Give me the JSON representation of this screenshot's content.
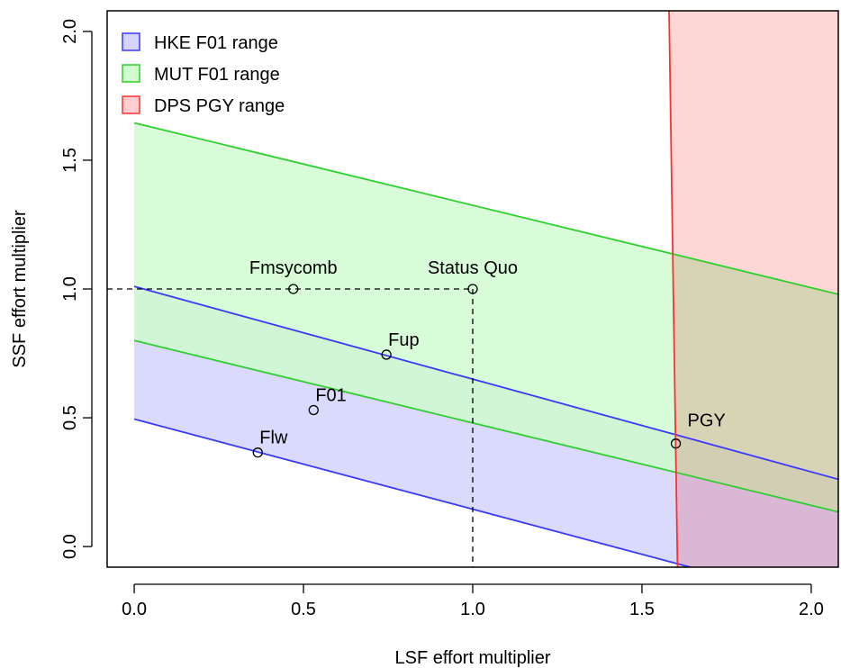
{
  "chart_data": {
    "type": "area",
    "xlabel": "LSF effort multiplier",
    "ylabel": "SSF effort multiplier",
    "xlim": [
      -0.08,
      2.08
    ],
    "ylim": [
      -0.08,
      2.08
    ],
    "x_ticks": [
      "0.0",
      "0.5",
      "1.0",
      "1.5",
      "2.0"
    ],
    "y_ticks": [
      "0.0",
      "0.5",
      "1.0",
      "1.5",
      "2.0"
    ],
    "grid": false,
    "legend_position": "top-left",
    "legend": [
      {
        "label": "HKE F01 range",
        "fill": "#d4d4fc",
        "border": "#3a3aff"
      },
      {
        "label": "MUT F01 range",
        "fill": "#d0fcd0",
        "border": "#2ecf2e"
      },
      {
        "label": "DPS PGY range",
        "fill": "#ffcfcf",
        "border": "#ff3030"
      }
    ],
    "bands": [
      {
        "name": "HKE F01 range",
        "fill": "#d4d4fc",
        "stroke": "#3a3aff",
        "lower": {
          "intercept": 0.495,
          "slope": -0.35
        },
        "upper": {
          "intercept": 1.01,
          "slope": -0.36
        }
      },
      {
        "name": "MUT F01 range",
        "fill": "#d0fcd0",
        "stroke": "#2ecf2e",
        "lower": {
          "intercept": 0.8,
          "slope": -0.32
        },
        "upper": {
          "intercept": 1.645,
          "slope": -0.32
        }
      }
    ],
    "pgy_region": {
      "name": "DPS PGY range",
      "fill": "#ffcfcf",
      "stroke": "#ff3030",
      "boundary": [
        [
          1.58,
          2.08
        ],
        [
          1.605,
          -0.08
        ]
      ]
    },
    "reference_lines": {
      "x": 1.0,
      "y": 1.0
    },
    "points": [
      {
        "label": "Fmsycomb",
        "x": 0.47,
        "y": 1.0,
        "label_pos": "above"
      },
      {
        "label": "Status Quo",
        "x": 1.0,
        "y": 1.0,
        "label_pos": "above"
      },
      {
        "label": "Fup",
        "x": 0.745,
        "y": 0.745,
        "label_pos": "above-right"
      },
      {
        "label": "F01",
        "x": 0.53,
        "y": 0.53,
        "label_pos": "above-right"
      },
      {
        "label": "Flw",
        "x": 0.365,
        "y": 0.365,
        "label_pos": "above-right"
      },
      {
        "label": "PGY",
        "x": 1.6,
        "y": 0.4,
        "label_pos": "above-right"
      }
    ]
  }
}
